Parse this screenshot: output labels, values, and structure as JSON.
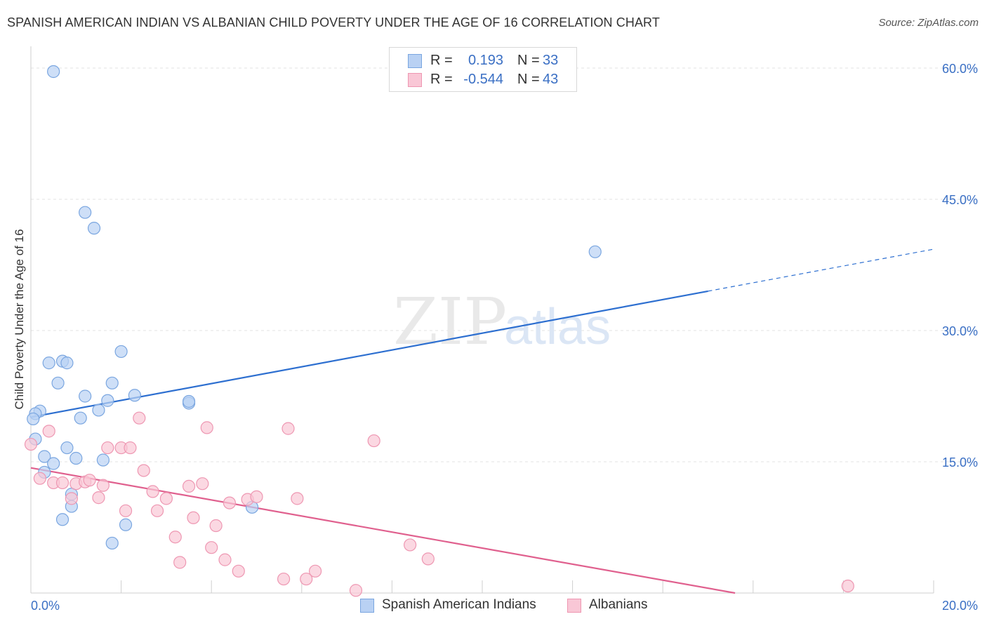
{
  "title": "SPANISH AMERICAN INDIAN VS ALBANIAN CHILD POVERTY UNDER THE AGE OF 16 CORRELATION CHART",
  "source": "Source: ZipAtlas.com",
  "watermark": {
    "part1": "ZIP",
    "part2": "atlas"
  },
  "stats": [
    {
      "r_label": "R =",
      "r_value": "0.193",
      "n_label": "N =",
      "n_value": "33"
    },
    {
      "r_label": "R =",
      "r_value": "-0.544",
      "n_label": "N =",
      "n_value": "43"
    }
  ],
  "legend": [
    {
      "label": "Spanish American Indians"
    },
    {
      "label": "Albanians"
    }
  ],
  "colors": {
    "blue_fill": "#b9d1f3",
    "blue_stroke": "#7aa6e0",
    "blue_line": "#2d6fd0",
    "pink_fill": "#f9c7d6",
    "pink_stroke": "#ee97b2",
    "pink_line": "#e0608e",
    "axis_label": "#3a6fc4",
    "grid": "#e3e3e3"
  },
  "chart_data": {
    "type": "scatter",
    "title": "SPANISH AMERICAN INDIAN VS ALBANIAN CHILD POVERTY UNDER THE AGE OF 16 CORRELATION CHART",
    "xlabel": "",
    "ylabel": "Child Poverty Under the Age of 16",
    "xlim": [
      0,
      20
    ],
    "ylim": [
      0,
      60
    ],
    "x_tick_labels": [
      "0.0%",
      "20.0%"
    ],
    "y_ticks": [
      15,
      30,
      45,
      60
    ],
    "y_tick_labels": [
      "15.0%",
      "30.0%",
      "45.0%",
      "60.0%"
    ],
    "series": [
      {
        "name": "Spanish American Indians",
        "r": 0.193,
        "n": 33,
        "points": [
          [
            0.5,
            59.6
          ],
          [
            1.2,
            43.5
          ],
          [
            1.4,
            41.7
          ],
          [
            12.5,
            39.0
          ],
          [
            0.4,
            26.3
          ],
          [
            0.7,
            26.5
          ],
          [
            0.8,
            26.3
          ],
          [
            2.0,
            27.6
          ],
          [
            0.6,
            24.0
          ],
          [
            1.8,
            24.0
          ],
          [
            1.2,
            22.5
          ],
          [
            2.3,
            22.6
          ],
          [
            1.7,
            22.0
          ],
          [
            3.5,
            21.7
          ],
          [
            3.5,
            21.9
          ],
          [
            0.2,
            20.8
          ],
          [
            1.5,
            20.9
          ],
          [
            1.1,
            20.0
          ],
          [
            0.1,
            20.5
          ],
          [
            0.1,
            17.6
          ],
          [
            0.8,
            16.6
          ],
          [
            0.3,
            15.6
          ],
          [
            1.0,
            15.4
          ],
          [
            1.6,
            15.2
          ],
          [
            0.5,
            14.8
          ],
          [
            0.3,
            13.8
          ],
          [
            0.9,
            11.3
          ],
          [
            0.9,
            9.9
          ],
          [
            4.9,
            9.8
          ],
          [
            0.7,
            8.4
          ],
          [
            2.1,
            7.8
          ],
          [
            1.8,
            5.7
          ],
          [
            0.05,
            19.9
          ]
        ]
      },
      {
        "name": "Albanians",
        "r": -0.544,
        "n": 43,
        "points": [
          [
            0.0,
            17.0
          ],
          [
            0.4,
            18.5
          ],
          [
            0.2,
            13.1
          ],
          [
            0.5,
            12.6
          ],
          [
            0.7,
            12.6
          ],
          [
            1.0,
            12.5
          ],
          [
            1.2,
            12.7
          ],
          [
            1.3,
            12.9
          ],
          [
            1.6,
            12.3
          ],
          [
            2.4,
            20.0
          ],
          [
            3.9,
            18.9
          ],
          [
            5.7,
            18.8
          ],
          [
            7.6,
            17.4
          ],
          [
            1.7,
            16.6
          ],
          [
            2.0,
            16.6
          ],
          [
            2.2,
            16.6
          ],
          [
            2.5,
            14.0
          ],
          [
            0.9,
            10.8
          ],
          [
            1.5,
            10.9
          ],
          [
            2.7,
            11.6
          ],
          [
            3.0,
            10.8
          ],
          [
            3.5,
            12.2
          ],
          [
            3.8,
            12.5
          ],
          [
            4.4,
            10.3
          ],
          [
            4.8,
            10.7
          ],
          [
            5.0,
            11.0
          ],
          [
            5.9,
            10.8
          ],
          [
            2.1,
            9.4
          ],
          [
            2.8,
            9.4
          ],
          [
            3.6,
            8.6
          ],
          [
            4.1,
            7.7
          ],
          [
            3.2,
            6.4
          ],
          [
            4.0,
            5.2
          ],
          [
            8.4,
            5.5
          ],
          [
            8.8,
            3.9
          ],
          [
            3.3,
            3.5
          ],
          [
            4.3,
            3.8
          ],
          [
            4.6,
            2.5
          ],
          [
            5.6,
            1.6
          ],
          [
            6.1,
            1.6
          ],
          [
            6.3,
            2.5
          ],
          [
            7.2,
            0.3
          ],
          [
            18.1,
            0.8
          ]
        ]
      }
    ],
    "trend_lines": [
      {
        "series": "Spanish American Indians",
        "x0": 0,
        "y0": 20.1,
        "x1": 15,
        "y1": 34.5,
        "dashed_to_x": 20,
        "dashed_to_y": 39.3
      },
      {
        "series": "Albanians",
        "x0": 0,
        "y0": 14.3,
        "x1": 15.6,
        "y1": 0
      }
    ]
  }
}
